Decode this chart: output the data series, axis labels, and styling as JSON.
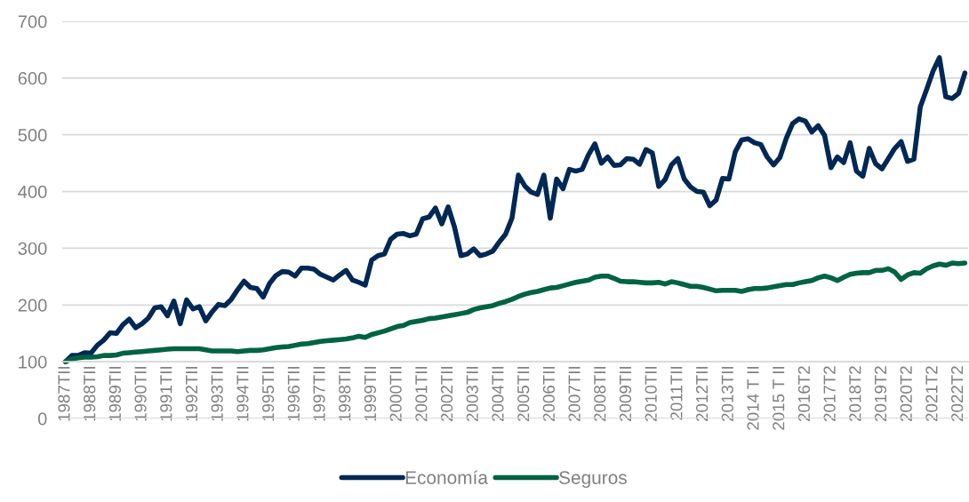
{
  "chart_data": {
    "type": "line",
    "categories": [
      "1987TII",
      null,
      null,
      null,
      "1988TII",
      null,
      null,
      null,
      "1989TII",
      null,
      null,
      null,
      "1990TII",
      null,
      null,
      null,
      "1991TII",
      null,
      null,
      null,
      "1992TII",
      null,
      null,
      null,
      "1993TII",
      null,
      null,
      null,
      "1994TII",
      null,
      null,
      null,
      "1995TII",
      null,
      null,
      null,
      "1996TII",
      null,
      null,
      null,
      "1997TII",
      null,
      null,
      null,
      "1998TII",
      null,
      null,
      null,
      "1999TII",
      null,
      null,
      null,
      "2000TII",
      null,
      null,
      null,
      "2001TII",
      null,
      null,
      null,
      "2002TII",
      null,
      null,
      null,
      "2003TII",
      null,
      null,
      null,
      "2004TII",
      null,
      null,
      null,
      "2005TII",
      null,
      null,
      null,
      "2006TII",
      null,
      null,
      null,
      "2007TII",
      null,
      null,
      null,
      "2008TII",
      null,
      null,
      null,
      "2009TII",
      null,
      null,
      null,
      "2010TII",
      null,
      null,
      null,
      "2011TII",
      null,
      null,
      null,
      "2012TII",
      null,
      null,
      null,
      "2013TII",
      null,
      null,
      null,
      "2014 T II",
      null,
      null,
      null,
      "2015 T II",
      null,
      null,
      null,
      "2016T2",
      null,
      null,
      null,
      "2017T2",
      null,
      null,
      null,
      "2018T2",
      null,
      null,
      null,
      "2019T2",
      null,
      null,
      null,
      "2020T2",
      null,
      null,
      null,
      "2021T2",
      null,
      null,
      null,
      "2022T2",
      null
    ],
    "series": [
      {
        "name": "Economía",
        "color": "#002855",
        "values": [
          100,
          111,
          111,
          116,
          115,
          129,
          138,
          151,
          150,
          165,
          175,
          160,
          167,
          177,
          195,
          197,
          181,
          207,
          167,
          209,
          193,
          197,
          172,
          188,
          201,
          199,
          210,
          227,
          242,
          231,
          229,
          214,
          238,
          252,
          259,
          258,
          251,
          265,
          265,
          263,
          254,
          249,
          244,
          253,
          261,
          244,
          240,
          235,
          279,
          287,
          290,
          316,
          325,
          326,
          322,
          325,
          352,
          355,
          371,
          343,
          373,
          337,
          287,
          290,
          299,
          287,
          290,
          295,
          311,
          325,
          353,
          429,
          410,
          399,
          395,
          429,
          353,
          422,
          405,
          439,
          436,
          439,
          465,
          484,
          450,
          461,
          446,
          447,
          458,
          457,
          448,
          474,
          468,
          409,
          421,
          447,
          458,
          422,
          408,
          400,
          399,
          375,
          385,
          423,
          422,
          470,
          491,
          493,
          486,
          483,
          461,
          447,
          460,
          494,
          520,
          528,
          524,
          505,
          516,
          499,
          442,
          461,
          451,
          486,
          436,
          427,
          476,
          449,
          440,
          458,
          476,
          488,
          453,
          457,
          549,
          580,
          612,
          636,
          567,
          564,
          573,
          609
        ]
      },
      {
        "name": "Seguros",
        "color": "#006341",
        "values": [
          100,
          105,
          107,
          108,
          108,
          109,
          111,
          111,
          112,
          115,
          116,
          117,
          118,
          119,
          120,
          121,
          122,
          123,
          123,
          123,
          123,
          123,
          121,
          119,
          119,
          119,
          119,
          118,
          119,
          120,
          120,
          121,
          123,
          125,
          126,
          127,
          129,
          131,
          132,
          134,
          136,
          137,
          138,
          139,
          140,
          142,
          145,
          143,
          148,
          151,
          154,
          158,
          162,
          164,
          169,
          171,
          173,
          176,
          177,
          179,
          181,
          183,
          185,
          187,
          192,
          195,
          197,
          199,
          203,
          206,
          210,
          215,
          219,
          222,
          224,
          227,
          230,
          231,
          234,
          237,
          240,
          242,
          244,
          249,
          251,
          251,
          247,
          242,
          241,
          241,
          240,
          239,
          239,
          240,
          237,
          241,
          239,
          236,
          233,
          233,
          231,
          228,
          225,
          226,
          226,
          226,
          224,
          227,
          229,
          229,
          230,
          232,
          234,
          236,
          236,
          239,
          241,
          243,
          248,
          251,
          248,
          243,
          249,
          254,
          256,
          257,
          257,
          261,
          261,
          264,
          258,
          245,
          253,
          257,
          256,
          264,
          269,
          272,
          270,
          274,
          273,
          274
        ]
      }
    ],
    "ylim": [
      0,
      700
    ],
    "yticks": [
      0,
      100,
      200,
      300,
      400,
      500,
      600,
      700
    ],
    "grid": "y",
    "legend": "bottom",
    "marker": "none",
    "line_style": "solid"
  }
}
